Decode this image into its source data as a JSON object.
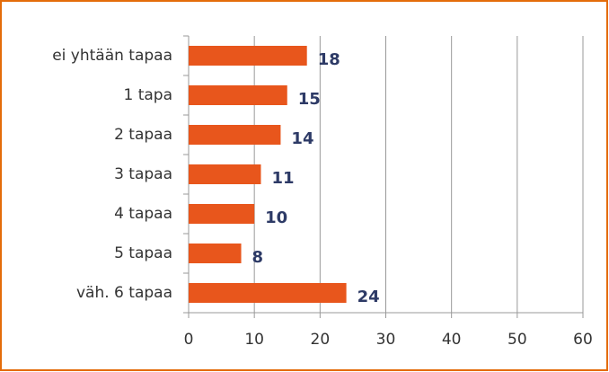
{
  "chart_data": {
    "type": "bar",
    "orientation": "horizontal",
    "categories": [
      "ei yhtään tapaa",
      "1 tapa",
      "2 tapaa",
      "3 tapaa",
      "4 tapaa",
      "5 tapaa",
      "väh. 6 tapaa"
    ],
    "values": [
      18,
      15,
      14,
      11,
      10,
      8,
      24
    ],
    "color": "#e8561c",
    "xlim": [
      0,
      60
    ],
    "xticks": [
      0,
      10,
      20,
      30,
      40,
      50,
      60
    ],
    "grid": true
  }
}
